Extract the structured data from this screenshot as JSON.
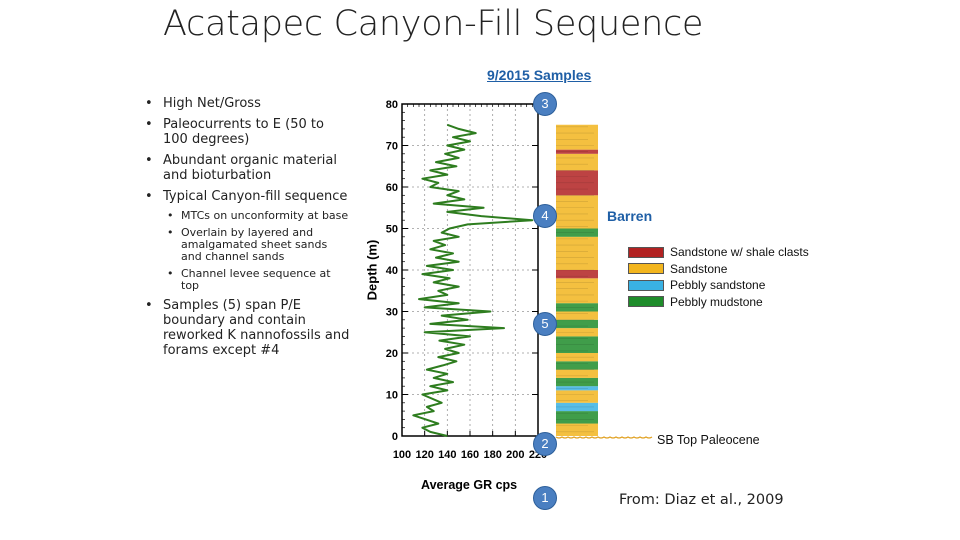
{
  "slide": {
    "title": "Acatapec Canyon-Fill Sequence",
    "samples_heading": "9/2015 Samples",
    "citation": "From: Diaz et al., 2009"
  },
  "bullets": [
    {
      "text": "High Net/Gross",
      "sub": []
    },
    {
      "text": "Paleocurrents to E (50 to 100 degrees)",
      "sub": []
    },
    {
      "text": "Abundant organic material and bioturbation",
      "sub": []
    },
    {
      "text": "Typical Canyon-fill sequence",
      "sub": [
        "MTCs on unconformity at base",
        "Overlain by layered and amalgamated sheet sands and channel sands",
        "Channel levee sequence at top"
      ]
    },
    {
      "text": "Samples (5) span P/E boundary and contain reworked K nannofossils and forams except #4",
      "sub": []
    }
  ],
  "log": {
    "barren_label": "Barren",
    "boundary_label": "SB Top Paleocene",
    "legend": [
      {
        "label": "Sandstone w/ shale clasts",
        "color": "#b22222"
      },
      {
        "label": "Sandstone",
        "color": "#f2b51e"
      },
      {
        "label": "Pebbly sandstone",
        "color": "#39b1e3"
      },
      {
        "label": "Pebbly mudstone",
        "color": "#1e8c2a"
      }
    ],
    "samples": [
      {
        "label": "3",
        "depth": 80
      },
      {
        "label": "4",
        "depth": 53
      },
      {
        "label": "5",
        "depth": 27
      },
      {
        "label": "2",
        "depth": -2
      },
      {
        "label": "1",
        "depth": -15
      }
    ],
    "lithology": [
      {
        "from": 0,
        "to": 3,
        "type": "Sandstone"
      },
      {
        "from": 3,
        "to": 6,
        "type": "Pebbly mudstone"
      },
      {
        "from": 6,
        "to": 8,
        "type": "Pebbly sandstone"
      },
      {
        "from": 8,
        "to": 11,
        "type": "Sandstone"
      },
      {
        "from": 11,
        "to": 12,
        "type": "Pebbly sandstone"
      },
      {
        "from": 12,
        "to": 14,
        "type": "Pebbly mudstone"
      },
      {
        "from": 14,
        "to": 16,
        "type": "Sandstone"
      },
      {
        "from": 16,
        "to": 18,
        "type": "Pebbly mudstone"
      },
      {
        "from": 18,
        "to": 20,
        "type": "Sandstone"
      },
      {
        "from": 20,
        "to": 24,
        "type": "Pebbly mudstone"
      },
      {
        "from": 24,
        "to": 26,
        "type": "Sandstone"
      },
      {
        "from": 26,
        "to": 28,
        "type": "Pebbly mudstone"
      },
      {
        "from": 28,
        "to": 30,
        "type": "Sandstone"
      },
      {
        "from": 30,
        "to": 32,
        "type": "Pebbly mudstone"
      },
      {
        "from": 32,
        "to": 38,
        "type": "Sandstone"
      },
      {
        "from": 38,
        "to": 40,
        "type": "Sandstone w/ shale clasts"
      },
      {
        "from": 40,
        "to": 48,
        "type": "Sandstone"
      },
      {
        "from": 48,
        "to": 50,
        "type": "Pebbly mudstone"
      },
      {
        "from": 50,
        "to": 58,
        "type": "Sandstone"
      },
      {
        "from": 58,
        "to": 64,
        "type": "Sandstone w/ shale clasts"
      },
      {
        "from": 64,
        "to": 68,
        "type": "Sandstone"
      },
      {
        "from": 68,
        "to": 69,
        "type": "Sandstone w/ shale clasts"
      },
      {
        "from": 69,
        "to": 75,
        "type": "Sandstone"
      }
    ]
  },
  "chart_data": {
    "type": "line",
    "title": "",
    "xlabel": "Average GR cps",
    "ylabel": "Depth (m)",
    "xlim": [
      100,
      220
    ],
    "ylim": [
      0,
      80
    ],
    "xticks": [
      100,
      120,
      140,
      160,
      180,
      200,
      220
    ],
    "yticks": [
      0,
      10,
      20,
      30,
      40,
      50,
      60,
      70,
      80
    ],
    "grid": true,
    "series": [
      {
        "name": "",
        "color": "#2e7d1f",
        "points": [
          [
            140,
            0
          ],
          [
            125,
            1
          ],
          [
            118,
            2
          ],
          [
            132,
            3
          ],
          [
            110,
            5
          ],
          [
            128,
            6
          ],
          [
            122,
            7
          ],
          [
            135,
            8
          ],
          [
            118,
            10
          ],
          [
            140,
            11
          ],
          [
            125,
            12
          ],
          [
            145,
            13
          ],
          [
            128,
            14
          ],
          [
            140,
            15
          ],
          [
            122,
            16
          ],
          [
            136,
            17
          ],
          [
            148,
            18
          ],
          [
            132,
            19
          ],
          [
            150,
            20
          ],
          [
            138,
            21
          ],
          [
            155,
            22
          ],
          [
            133,
            23
          ],
          [
            160,
            24
          ],
          [
            120,
            25
          ],
          [
            190,
            26
          ],
          [
            125,
            27
          ],
          [
            158,
            28
          ],
          [
            135,
            29
          ],
          [
            178,
            30
          ],
          [
            120,
            31
          ],
          [
            150,
            32
          ],
          [
            115,
            33
          ],
          [
            140,
            34
          ],
          [
            132,
            35
          ],
          [
            150,
            36
          ],
          [
            128,
            37
          ],
          [
            142,
            38
          ],
          [
            118,
            39
          ],
          [
            145,
            40
          ],
          [
            122,
            41
          ],
          [
            150,
            42
          ],
          [
            130,
            43
          ],
          [
            145,
            44
          ],
          [
            125,
            45
          ],
          [
            138,
            46
          ],
          [
            128,
            47
          ],
          [
            150,
            48
          ],
          [
            135,
            49
          ],
          [
            142,
            50
          ],
          [
            158,
            51
          ],
          [
            215,
            52
          ],
          [
            170,
            53
          ],
          [
            140,
            54
          ],
          [
            172,
            55
          ],
          [
            128,
            56
          ],
          [
            155,
            57
          ],
          [
            140,
            58
          ],
          [
            150,
            59
          ],
          [
            125,
            60
          ],
          [
            132,
            61
          ],
          [
            118,
            62
          ],
          [
            140,
            63
          ],
          [
            125,
            64
          ],
          [
            148,
            65
          ],
          [
            130,
            66
          ],
          [
            150,
            67
          ],
          [
            138,
            68
          ],
          [
            155,
            69
          ],
          [
            140,
            70
          ],
          [
            160,
            71
          ],
          [
            145,
            72
          ],
          [
            165,
            73
          ],
          [
            150,
            74
          ],
          [
            140,
            75
          ]
        ]
      }
    ]
  }
}
